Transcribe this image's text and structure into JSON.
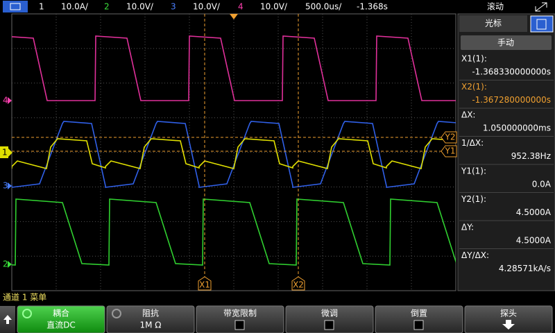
{
  "top_bar": {
    "channels": [
      {
        "number": "1",
        "scale": "10.0A/"
      },
      {
        "number": "2",
        "scale": "10.0V/"
      },
      {
        "number": "3",
        "scale": "10.0V/"
      },
      {
        "number": "4",
        "scale": "10.0V/"
      }
    ],
    "timebase": "500.0us/",
    "delay": "-1.368s",
    "mode": "滚动"
  },
  "markers": {
    "channels": [
      "4",
      "1",
      "3",
      "2"
    ],
    "x1": "X1",
    "x2": "X2",
    "y1": "Y1",
    "y2": "Y2"
  },
  "cursor_panel": {
    "title": "光标",
    "mode": "手动",
    "readouts": [
      {
        "label": "X1(1):",
        "value": "-1.368330000000s"
      },
      {
        "label": "X2(1):",
        "value": "-1.367280000000s"
      },
      {
        "label": "ΔX:",
        "value": "1.050000000ms"
      },
      {
        "label": "1/ΔX:",
        "value": "952.38Hz"
      },
      {
        "label": "Y1(1):",
        "value": "0.0A"
      },
      {
        "label": "Y2(1):",
        "value": "4.5000A"
      },
      {
        "label": "ΔY:",
        "value": "4.5000A"
      },
      {
        "label": "ΔY/ΔX:",
        "value": "4.28571kA/s"
      }
    ]
  },
  "menu": {
    "title": "通道 1 菜单",
    "softkeys": [
      {
        "label": "耦合",
        "value": "直流DC"
      },
      {
        "label": "阻抗",
        "value": "1M Ω"
      },
      {
        "label": "带宽限制"
      },
      {
        "label": "微调"
      },
      {
        "label": "倒置"
      },
      {
        "label": "探头"
      }
    ]
  }
}
